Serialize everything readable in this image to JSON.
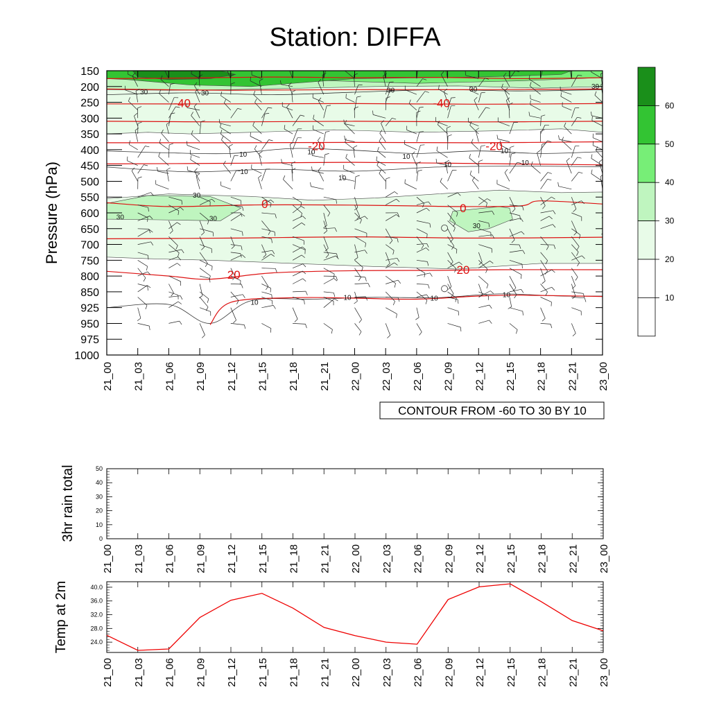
{
  "title": "Station: DIFFA",
  "chart_data": [
    {
      "type": "contour",
      "name": "pressure-time-cross-section",
      "ylabel": "Pressure (hPa)",
      "pressure_levels": [
        "150",
        "200",
        "250",
        "300",
        "350",
        "400",
        "450",
        "500",
        "550",
        "600",
        "650",
        "700",
        "750",
        "800",
        "850",
        "925",
        "950",
        "975",
        "1000"
      ],
      "time_labels": [
        "21_00",
        "21_03",
        "21_06",
        "21_09",
        "21_12",
        "21_15",
        "21_18",
        "21_21",
        "22_00",
        "22_03",
        "22_06",
        "22_09",
        "22_12",
        "22_15",
        "22_18",
        "22_21",
        "23_00"
      ],
      "contour_info": "CONTOUR FROM -60 TO 30 BY 10",
      "colorbar": {
        "labels": [
          "60",
          "50",
          "40",
          "30",
          "20",
          "10"
        ],
        "colors": [
          "#1a8f1a",
          "#33c433",
          "#77ee77",
          "#bff5bf",
          "#e8fbe8",
          "#ffffff",
          "#ffffff"
        ]
      },
      "temperature_labels": [
        {
          "text": "-40",
          "time": 7.3,
          "pressure": 252
        },
        {
          "text": "-40",
          "time": 32.4,
          "pressure": 252
        },
        {
          "text": "-20",
          "time": 20.3,
          "pressure": 388
        },
        {
          "text": "-20",
          "time": 37.5,
          "pressure": 388
        },
        {
          "text": "0",
          "time": 15.3,
          "pressure": 572
        },
        {
          "text": "0",
          "time": 34.5,
          "pressure": 585
        },
        {
          "text": "20",
          "time": 12.3,
          "pressure": 795
        },
        {
          "text": "20",
          "time": 34.5,
          "pressure": 780
        }
      ],
      "humidity_labels": [
        {
          "text": "30",
          "time": 3.6,
          "pressure": 216
        },
        {
          "text": "30",
          "time": 9.5,
          "pressure": 219
        },
        {
          "text": "30",
          "time": 27.5,
          "pressure": 210
        },
        {
          "text": "30",
          "time": 35.5,
          "pressure": 207
        },
        {
          "text": "30",
          "time": 47.3,
          "pressure": 198
        },
        {
          "text": "10",
          "time": 13.2,
          "pressure": 413
        },
        {
          "text": "10",
          "time": 19.8,
          "pressure": 406
        },
        {
          "text": "10",
          "time": 29.0,
          "pressure": 420
        },
        {
          "text": "10",
          "time": 33.0,
          "pressure": 445
        },
        {
          "text": "10",
          "time": 38.5,
          "pressure": 402
        },
        {
          "text": "10",
          "time": 40.5,
          "pressure": 440
        },
        {
          "text": "10",
          "time": 13.3,
          "pressure": 468
        },
        {
          "text": "10",
          "time": 22.8,
          "pressure": 488
        },
        {
          "text": "30",
          "time": 1.3,
          "pressure": 612
        },
        {
          "text": "30",
          "time": 8.7,
          "pressure": 543
        },
        {
          "text": "30",
          "time": 10.3,
          "pressure": 616
        },
        {
          "text": "30",
          "time": 35.8,
          "pressure": 640
        },
        {
          "text": "10",
          "time": 23.3,
          "pressure": 875
        },
        {
          "text": "10",
          "time": 31.7,
          "pressure": 878
        },
        {
          "text": "10",
          "time": 38.7,
          "pressure": 862
        },
        {
          "text": "10",
          "time": 14.3,
          "pressure": 898
        }
      ]
    },
    {
      "type": "line",
      "name": "rain",
      "ylabel": "3hr rain total",
      "ylim": [
        0,
        50
      ],
      "yticks": [
        "0",
        "10",
        "20",
        "30",
        "40",
        "50"
      ],
      "x": [
        "21_00",
        "21_03",
        "21_06",
        "21_09",
        "21_12",
        "21_15",
        "21_18",
        "21_21",
        "22_00",
        "22_03",
        "22_06",
        "22_09",
        "22_12",
        "22_15",
        "22_18",
        "22_21",
        "23_00"
      ],
      "series": []
    },
    {
      "type": "line",
      "name": "temperature-2m",
      "ylabel": "Temp at 2m",
      "ylim": [
        21.0,
        41.6
      ],
      "yticks": [
        "24.0",
        "28.0",
        "32.0",
        "36.0",
        "40.0"
      ],
      "x": [
        "21_00",
        "21_03",
        "21_06",
        "21_09",
        "21_12",
        "21_15",
        "21_18",
        "21_21",
        "22_00",
        "22_03",
        "22_06",
        "22_09",
        "22_12",
        "22_15",
        "22_18",
        "22_21",
        "23_00"
      ],
      "series": [
        {
          "name": "Temp at 2m",
          "color": "#ee0000",
          "values": [
            26.0,
            21.6,
            22.0,
            31.2,
            36.2,
            38.2,
            33.9,
            28.3,
            25.9,
            24.0,
            23.4,
            36.4,
            40.1,
            41.0,
            35.8,
            30.3,
            27.3
          ]
        }
      ]
    }
  ]
}
